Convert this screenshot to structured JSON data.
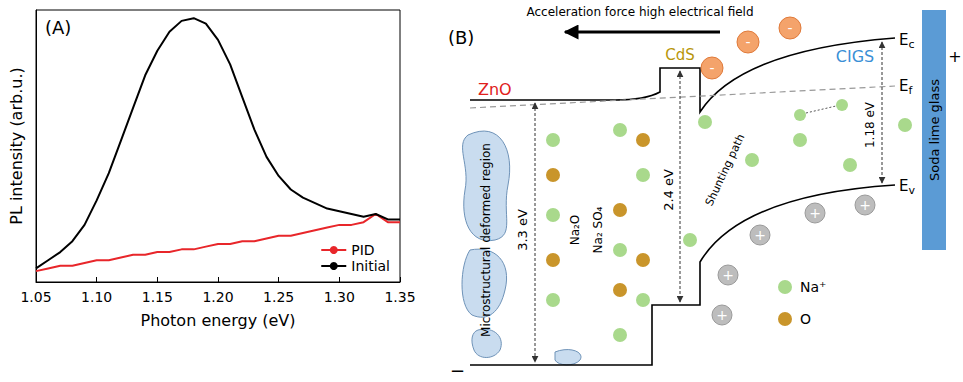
{
  "chart_data": {
    "type": "line",
    "panel_label": "(A)",
    "xlabel": "Photon energy (eV)",
    "ylabel": "PL intensity (arb.u.)",
    "x": [
      1.05,
      1.06,
      1.07,
      1.08,
      1.09,
      1.1,
      1.11,
      1.12,
      1.13,
      1.14,
      1.15,
      1.16,
      1.17,
      1.18,
      1.19,
      1.2,
      1.21,
      1.22,
      1.23,
      1.24,
      1.25,
      1.26,
      1.27,
      1.28,
      1.29,
      1.3,
      1.31,
      1.32,
      1.33,
      1.34,
      1.35
    ],
    "series": [
      {
        "name": "PID",
        "color": "#e8262a",
        "values": [
          0.04,
          0.05,
          0.06,
          0.06,
          0.07,
          0.08,
          0.08,
          0.09,
          0.1,
          0.1,
          0.11,
          0.11,
          0.12,
          0.12,
          0.13,
          0.14,
          0.14,
          0.15,
          0.15,
          0.16,
          0.17,
          0.17,
          0.18,
          0.19,
          0.2,
          0.21,
          0.21,
          0.22,
          0.25,
          0.22,
          0.22
        ]
      },
      {
        "name": "Initial",
        "color": "#000000",
        "values": [
          0.05,
          0.08,
          0.11,
          0.15,
          0.21,
          0.3,
          0.4,
          0.52,
          0.64,
          0.76,
          0.85,
          0.92,
          0.96,
          0.97,
          0.95,
          0.89,
          0.8,
          0.68,
          0.56,
          0.46,
          0.39,
          0.34,
          0.31,
          0.29,
          0.27,
          0.26,
          0.25,
          0.24,
          0.25,
          0.23,
          0.23
        ]
      }
    ],
    "xlim": [
      1.05,
      1.35
    ],
    "xticks": [
      1.05,
      {
        "value": 1.1,
        "label": "1.10"
      },
      1.15,
      {
        "value": 1.2,
        "label": "1.20"
      },
      1.25,
      {
        "value": 1.3,
        "label": "1.30"
      },
      1.35
    ],
    "ylim": [
      0,
      1
    ],
    "tick_labels": "x",
    "grid": false,
    "legend": "lower right"
  },
  "diagram": {
    "panel_label": "(B)",
    "field_label": "Acceleration force high electrical field",
    "layers": [
      "ZnO",
      "CdS",
      "CIGS"
    ],
    "substrate": "Soda lime glass",
    "band_labels": [
      "Ec",
      "Ef",
      "Ev"
    ],
    "gaps": [
      "3.3 eV",
      "2.4 eV",
      "1.18 eV"
    ],
    "region_label": "Microstructural deformed region",
    "compounds": [
      "Na₂O",
      "Na₂ SO₄"
    ],
    "path_label": "Shunting path",
    "charges": {
      "electron": "-",
      "hole": "+"
    },
    "species": [
      {
        "label": "Na⁺",
        "color": "#a9d98c"
      },
      {
        "label": "O",
        "color": "#c9952b"
      }
    ],
    "polarity": {
      "left": "−",
      "right": "+"
    }
  }
}
